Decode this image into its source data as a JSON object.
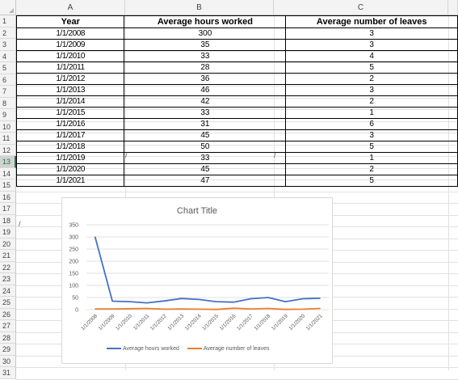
{
  "sheet": {
    "columns": [
      "A",
      "B",
      "C"
    ],
    "rows": [
      "1",
      "2",
      "3",
      "4",
      "5",
      "6",
      "7",
      "8",
      "9",
      "10",
      "11",
      "12",
      "13",
      "14",
      "15",
      "16",
      "17",
      "18",
      "19",
      "20",
      "21",
      "22",
      "23",
      "24",
      "25",
      "26",
      "27",
      "28",
      "29",
      "30",
      "31"
    ],
    "selected_row": "13"
  },
  "table": {
    "headers": [
      "Year",
      "Average hours worked",
      "Average number of leaves"
    ],
    "rows": [
      [
        "1/1/2008",
        "300",
        "3"
      ],
      [
        "1/1/2009",
        "35",
        "3"
      ],
      [
        "1/1/2010",
        "33",
        "4"
      ],
      [
        "1/1/2011",
        "28",
        "5"
      ],
      [
        "1/1/2012",
        "36",
        "2"
      ],
      [
        "1/1/2013",
        "46",
        "3"
      ],
      [
        "1/1/2014",
        "42",
        "2"
      ],
      [
        "1/1/2015",
        "33",
        "1"
      ],
      [
        "1/1/2016",
        "31",
        "6"
      ],
      [
        "1/1/2017",
        "45",
        "3"
      ],
      [
        "1/1/2018",
        "50",
        "5"
      ],
      [
        "1/1/2019",
        "33",
        "1"
      ],
      [
        "1/1/2020",
        "45",
        "2"
      ],
      [
        "1/1/2021",
        "47",
        "5"
      ]
    ]
  },
  "chart_data": {
    "type": "line",
    "title": "Chart Title",
    "categories": [
      "1/1/2008",
      "1/1/2009",
      "1/1/2010",
      "1/1/2011",
      "1/1/2012",
      "1/1/2013",
      "1/1/2014",
      "1/1/2015",
      "1/1/2016",
      "1/1/2017",
      "1/1/2018",
      "1/1/2019",
      "1/1/2020",
      "1/1/2021"
    ],
    "series": [
      {
        "name": "Average hours worked",
        "values": [
          300,
          35,
          33,
          28,
          36,
          46,
          42,
          33,
          31,
          45,
          50,
          33,
          45,
          47
        ],
        "color": "#4472c4"
      },
      {
        "name": "Average number of leaves",
        "values": [
          3,
          3,
          4,
          5,
          2,
          3,
          2,
          1,
          6,
          3,
          5,
          1,
          2,
          5
        ],
        "color": "#ed7d31"
      }
    ],
    "yticks": [
      "0",
      "50",
      "100",
      "150",
      "200",
      "250",
      "300",
      "350"
    ],
    "ylim": [
      0,
      350
    ],
    "grid": true,
    "legend": "bottom"
  },
  "marks": [
    "/",
    "/",
    "/"
  ]
}
